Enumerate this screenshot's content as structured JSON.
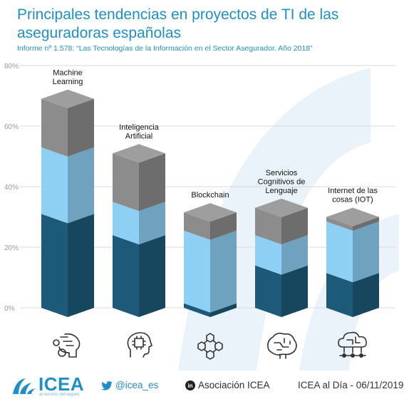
{
  "title_line1": "Principales tendencias en proyectos de TI de las",
  "title_line2": "aseguradoras españolas",
  "subtitle": "Informe nº 1.578: “Las Tecnologías de la Información en el Sector Asegurador. Año 2018”",
  "chart_data": {
    "type": "bar",
    "stacked": true,
    "style": "3d-column",
    "yticks": [
      "80%",
      "60%",
      "40%",
      "20%",
      "0%"
    ],
    "ylim": [
      0,
      80
    ],
    "grid": true,
    "categories": [
      "Machine Learning",
      "Inteligencia Artificial",
      "Blockchain",
      "Servicios Cognitivos de Lenguaje",
      "Internet de las cosas (IOT)"
    ],
    "category_label_lines": [
      [
        "Machine",
        "Learning"
      ],
      [
        "Inteligencia",
        "Artificial"
      ],
      [
        "Blockchain"
      ],
      [
        "Servicios",
        "Cognitivos de",
        "Lenguaje"
      ],
      [
        "Internet de las",
        "cosas (IOT)"
      ]
    ],
    "series": [
      {
        "values": [
          31,
          24,
          1.5,
          14,
          11.5
        ],
        "color": "#1d5a7a"
      },
      {
        "values": [
          22,
          11,
          24,
          10,
          17
        ],
        "color": "#8ed0f3"
      },
      {
        "values": [
          16,
          16,
          6,
          9,
          1.5
        ],
        "color": "#8c8c8c"
      }
    ],
    "icons": [
      "brain-gears-icon",
      "head-chip-icon",
      "blockchain-cubes-icon",
      "brain-circuit-icon",
      "cloud-network-icon"
    ]
  },
  "colors": {
    "accent": "#1f8fc8",
    "dark_blue": "#1d5a7a",
    "light_blue": "#8ed0f3",
    "grey": "#8c8c8c",
    "watermark": "#eaf3f9"
  },
  "footer": {
    "logo_text": "ICEA",
    "logo_tagline": "al servicio del seguro",
    "twitter": "@icea_es",
    "linkedin": "Asociación ICEA",
    "date": "ICEA al Día - 06/11/2019"
  }
}
